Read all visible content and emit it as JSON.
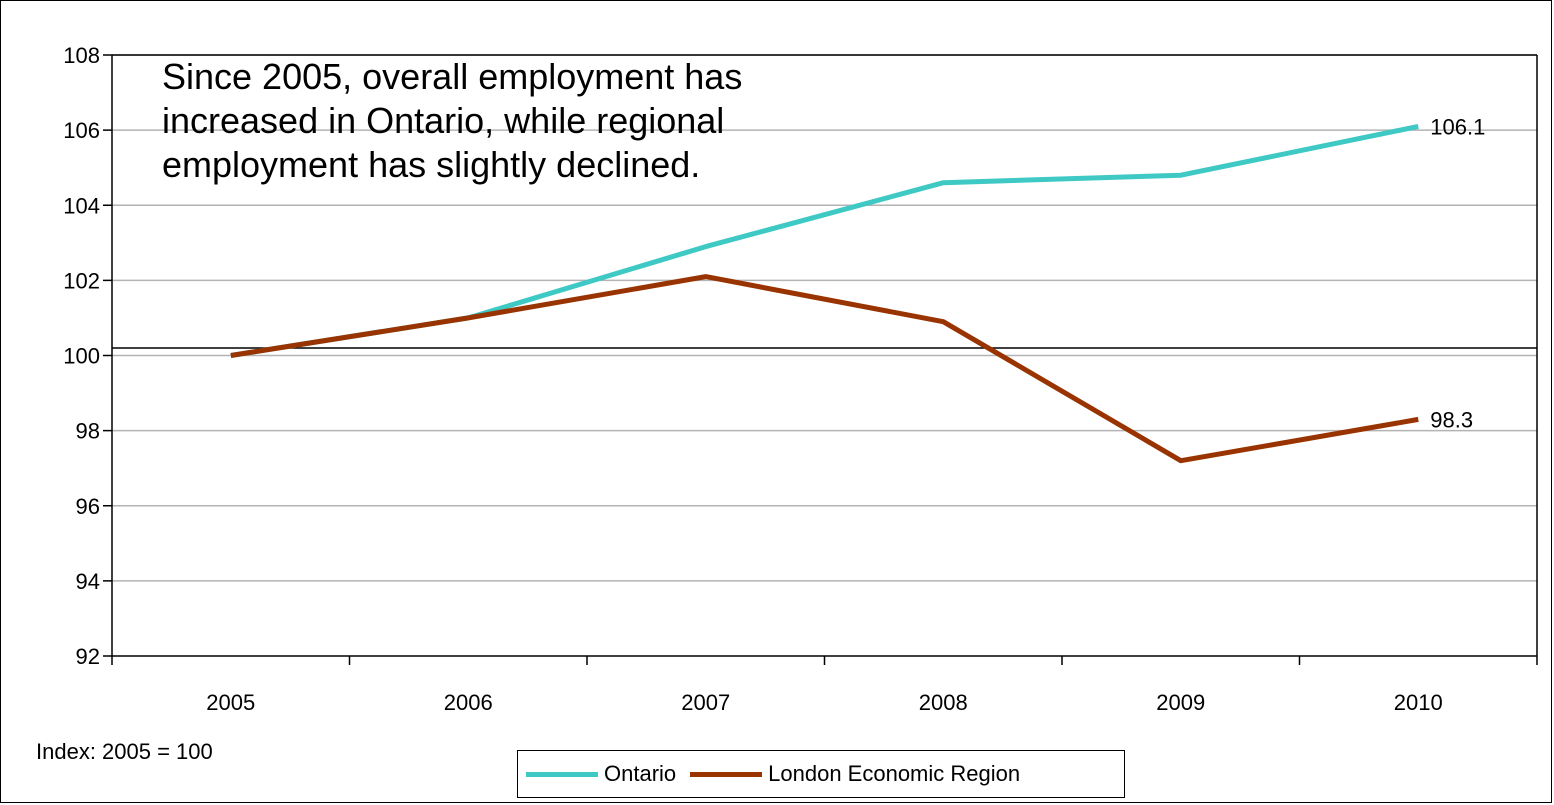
{
  "chart_data": {
    "type": "line",
    "x": [
      "2005",
      "2006",
      "2007",
      "2008",
      "2009",
      "2010"
    ],
    "series": [
      {
        "name": "Ontario",
        "values": [
          100.0,
          101.0,
          102.9,
          104.6,
          104.8,
          106.1
        ],
        "color": "#3EC9C4"
      },
      {
        "name": "London Economic Region",
        "values": [
          100.0,
          101.0,
          102.1,
          100.9,
          97.2,
          98.3
        ],
        "color": "#993300"
      }
    ],
    "ylim": [
      92,
      108
    ],
    "yticks": [
      "92",
      "94",
      "96",
      "98",
      "100",
      "102",
      "104",
      "106",
      "108"
    ],
    "reference_line": 100.2,
    "data_labels": [
      {
        "series": "Ontario",
        "text": "106.1"
      },
      {
        "series": "London Economic Region",
        "text": "98.3"
      }
    ],
    "annotation": "Since 2005, overall employment has increased in Ontario, while regional employment has slightly declined.",
    "note": "Index: 2005 = 100",
    "grid": "horizontal",
    "legend_placement": "bottom"
  }
}
